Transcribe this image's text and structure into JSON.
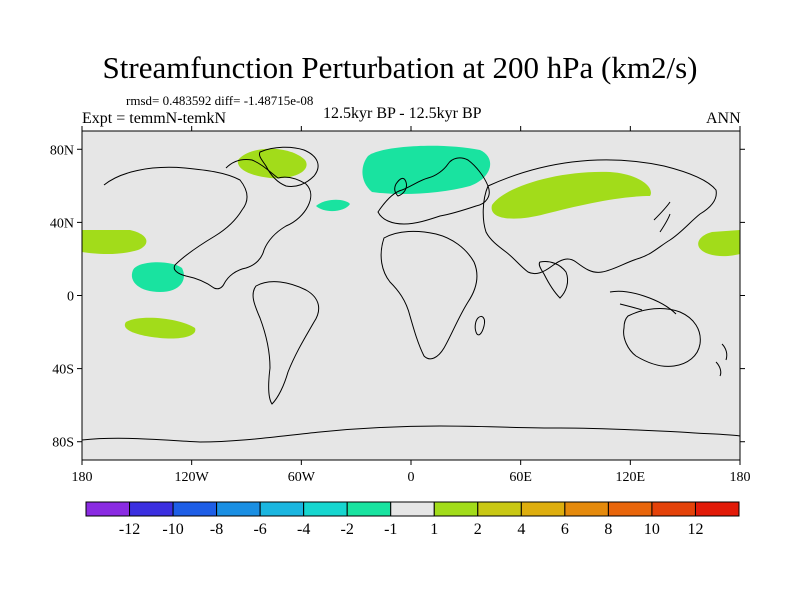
{
  "title": "Streamfunction Perturbation at 200 hPa (km2/s)",
  "stats": "rmsd= 0.483592 diff= -1.48715e-08",
  "left_label": "Expt = temmN-temkN",
  "center_label": "12.5kyr BP - 12.5kyr BP",
  "right_label": "ANN",
  "lat_ticks": [
    {
      "lat": 80,
      "label": "80N"
    },
    {
      "lat": 40,
      "label": "40N"
    },
    {
      "lat": 0,
      "label": "0"
    },
    {
      "lat": -40,
      "label": "40S"
    },
    {
      "lat": -80,
      "label": "80S"
    }
  ],
  "lon_ticks": [
    {
      "lon": -180,
      "label": "180"
    },
    {
      "lon": -120,
      "label": "120W"
    },
    {
      "lon": -60,
      "label": "60W"
    },
    {
      "lon": 0,
      "label": "0"
    },
    {
      "lon": 60,
      "label": "60E"
    },
    {
      "lon": 120,
      "label": "120E"
    },
    {
      "lon": 180,
      "label": "180"
    }
  ],
  "colorbar": {
    "colors": [
      "#8a2be2",
      "#3b2fe0",
      "#1e5ee6",
      "#1a8fe3",
      "#1bb6e0",
      "#16d6cf",
      "#19e3a0",
      "#e6e6e6",
      "#a2dc1a",
      "#c9c814",
      "#deae0e",
      "#e58a0c",
      "#e8650a",
      "#e44209",
      "#e21a08"
    ],
    "labels": [
      "-12",
      "-10",
      "-8",
      "-6",
      "-4",
      "-2",
      "-1",
      "1",
      "2",
      "4",
      "6",
      "8",
      "10",
      "12"
    ]
  },
  "field_colors": {
    "background": "#e6e6e6",
    "negative_-2_-1": "#19e3a0",
    "positive_1_2": "#a2dc1a",
    "positive_2_4": "#c9c814"
  }
}
